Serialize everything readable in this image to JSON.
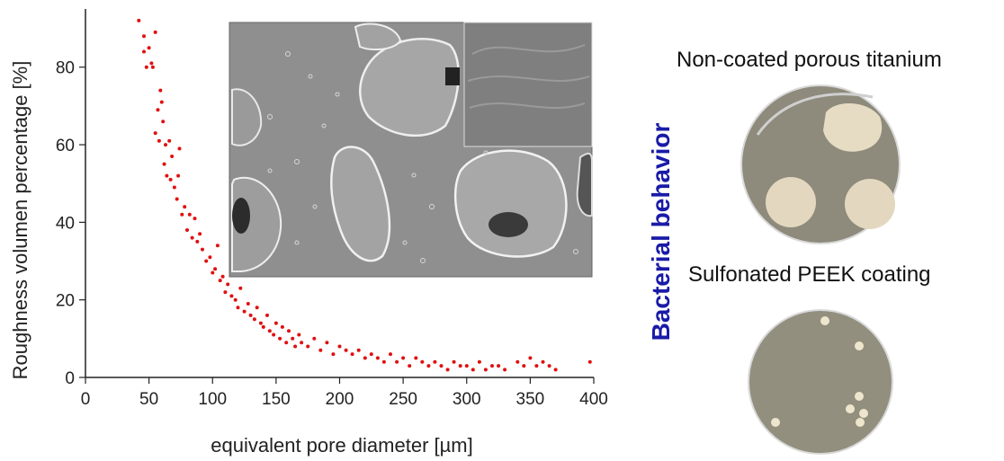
{
  "chart_data": {
    "type": "scatter",
    "title": "",
    "xlabel": "equivalent pore diameter  [µm]",
    "ylabel": "Roughness volumen percentage [%]",
    "xlim": [
      0,
      400
    ],
    "ylim": [
      0,
      95
    ],
    "x_ticks": [
      0,
      50,
      100,
      150,
      200,
      250,
      300,
      350,
      400
    ],
    "y_ticks": [
      0,
      20,
      40,
      60,
      80
    ],
    "grid": false,
    "legend": "none",
    "marker_color": "#e01010",
    "points": [
      [
        42,
        92
      ],
      [
        46,
        88
      ],
      [
        46,
        84
      ],
      [
        48,
        80
      ],
      [
        50,
        85
      ],
      [
        52,
        81
      ],
      [
        53,
        80
      ],
      [
        55,
        89
      ],
      [
        55,
        63
      ],
      [
        57,
        69
      ],
      [
        58,
        61
      ],
      [
        59,
        74
      ],
      [
        60,
        71
      ],
      [
        61,
        66
      ],
      [
        62,
        55
      ],
      [
        63,
        60
      ],
      [
        64,
        52
      ],
      [
        66,
        61
      ],
      [
        67,
        51
      ],
      [
        68,
        57
      ],
      [
        70,
        49
      ],
      [
        72,
        46
      ],
      [
        73,
        52
      ],
      [
        74,
        59
      ],
      [
        76,
        42
      ],
      [
        78,
        44
      ],
      [
        80,
        38
      ],
      [
        82,
        42
      ],
      [
        84,
        36
      ],
      [
        86,
        41
      ],
      [
        88,
        35
      ],
      [
        90,
        37
      ],
      [
        92,
        33
      ],
      [
        95,
        30
      ],
      [
        98,
        31
      ],
      [
        100,
        27
      ],
      [
        102,
        28
      ],
      [
        104,
        34
      ],
      [
        106,
        25
      ],
      [
        108,
        26
      ],
      [
        110,
        22
      ],
      [
        112,
        24
      ],
      [
        115,
        21
      ],
      [
        118,
        20
      ],
      [
        120,
        18
      ],
      [
        122,
        23
      ],
      [
        125,
        17
      ],
      [
        128,
        19
      ],
      [
        130,
        16
      ],
      [
        133,
        15
      ],
      [
        135,
        18
      ],
      [
        138,
        14
      ],
      [
        140,
        13
      ],
      [
        143,
        16
      ],
      [
        145,
        12
      ],
      [
        148,
        11
      ],
      [
        150,
        14
      ],
      [
        153,
        10
      ],
      [
        155,
        13
      ],
      [
        158,
        9
      ],
      [
        160,
        12
      ],
      [
        163,
        10
      ],
      [
        165,
        8
      ],
      [
        168,
        11
      ],
      [
        170,
        9
      ],
      [
        175,
        8
      ],
      [
        180,
        10
      ],
      [
        185,
        7
      ],
      [
        190,
        9
      ],
      [
        195,
        6
      ],
      [
        200,
        8
      ],
      [
        205,
        7
      ],
      [
        210,
        6
      ],
      [
        215,
        7
      ],
      [
        220,
        5
      ],
      [
        225,
        6
      ],
      [
        230,
        5
      ],
      [
        235,
        4
      ],
      [
        240,
        6
      ],
      [
        245,
        4
      ],
      [
        250,
        5
      ],
      [
        255,
        3
      ],
      [
        260,
        5
      ],
      [
        265,
        4
      ],
      [
        270,
        3
      ],
      [
        275,
        4
      ],
      [
        280,
        3
      ],
      [
        285,
        2
      ],
      [
        290,
        4
      ],
      [
        295,
        3
      ],
      [
        300,
        3
      ],
      [
        305,
        2
      ],
      [
        310,
        4
      ],
      [
        315,
        2
      ],
      [
        320,
        3
      ],
      [
        325,
        3
      ],
      [
        330,
        2
      ],
      [
        340,
        4
      ],
      [
        345,
        3
      ],
      [
        350,
        5
      ],
      [
        355,
        3
      ],
      [
        360,
        4
      ],
      [
        365,
        3
      ],
      [
        370,
        2
      ],
      [
        397,
        4
      ]
    ]
  },
  "side_panel": {
    "heading": "Bacterial behavior",
    "heading_color": "#1a1aa8",
    "top_label": "Non-coated porous titanium",
    "bottom_label": "Sulfonated PEEK coating"
  }
}
